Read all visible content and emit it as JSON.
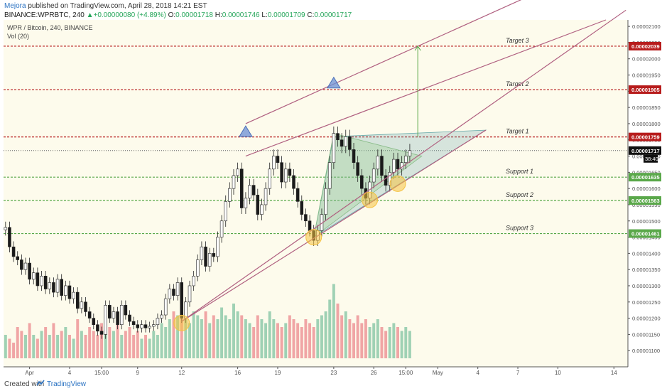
{
  "header": {
    "author": "Mejora",
    "published": "published on TradingView.com, April 28, 2018 14:21 EST",
    "symbol_line": "BINANCE:WPRBTC, 240",
    "change": "+0.00000080 (+4.89%)",
    "open_label": "O:",
    "open": "0.00001718",
    "high_label": "H:",
    "high": "0.00001746",
    "low_label": "L:",
    "low": "0.00001709",
    "close_label": "C:",
    "close": "0.00001717"
  },
  "legend": {
    "title": "WPR / Bitcoin, 240, BINANCE",
    "indicator": "Vol (20)"
  },
  "footer": {
    "created": "Created with",
    "brand": "TradingView",
    "icon": "tradingview-logo-icon"
  },
  "colors": {
    "background": "#fdfbec",
    "up": "#3a3a3a",
    "down": "#1a1a1a",
    "vol_up": "#9fd1b4",
    "vol_down": "#f0a5a5",
    "target": "#b71c1c",
    "support": "#5aa84a",
    "channel": "#b06080",
    "triangle_marker": "#6b8fd6",
    "circle_marker": "#f5c242",
    "green_arrow": "#5aa84a",
    "price_label_dark": "#111111"
  },
  "chart_data": {
    "type": "candlestick",
    "y_axis": {
      "min": 1.05e-05,
      "max": 2.12e-05,
      "ticks": [
        "0.00002100",
        "0.00002050",
        "0.00002000",
        "0.00001950",
        "0.00001900",
        "0.00001850",
        "0.00001800",
        "0.00001750",
        "0.00001700",
        "0.00001650",
        "0.00001600",
        "0.00001550",
        "0.00001500",
        "0.00001450",
        "0.00001400",
        "0.00001350",
        "0.00001300",
        "0.00001250",
        "0.00001200",
        "0.00001150",
        "0.00001100"
      ]
    },
    "x_axis": {
      "bars_visible": 156,
      "ticks": [
        {
          "label": "Apr",
          "bar": 6
        },
        {
          "label": "4",
          "bar": 16
        },
        {
          "label": "15:00",
          "bar": 24
        },
        {
          "label": "9",
          "bar": 33
        },
        {
          "label": "12",
          "bar": 44
        },
        {
          "label": "16",
          "bar": 58
        },
        {
          "label": "19",
          "bar": 68
        },
        {
          "label": "23",
          "bar": 82
        },
        {
          "label": "26",
          "bar": 92
        },
        {
          "label": "15:00",
          "bar": 100
        },
        {
          "label": "May",
          "bar": 108
        },
        {
          "label": "4",
          "bar": 118
        },
        {
          "label": "7",
          "bar": 128
        },
        {
          "label": "10",
          "bar": 138
        },
        {
          "label": "14",
          "bar": 152
        }
      ]
    },
    "horizontal_levels": [
      {
        "label": "Target 3",
        "value": 2.039e-05,
        "price_label": "0.00002039",
        "kind": "target"
      },
      {
        "label": "Target 2",
        "value": 1.905e-05,
        "price_label": "0.00001905",
        "kind": "target"
      },
      {
        "label": "Target 1",
        "value": 1.759e-05,
        "price_label": "0.00001759",
        "kind": "target"
      },
      {
        "label": "Support 1",
        "value": 1.635e-05,
        "price_label": "0.00001635",
        "kind": "support"
      },
      {
        "label": "Support 2",
        "value": 1.563e-05,
        "price_label": "0.00001563",
        "kind": "support"
      },
      {
        "label": "Support 3",
        "value": 1.461e-05,
        "price_label": "0.00001461",
        "kind": "support"
      }
    ],
    "current_price": {
      "value": 1.717e-05,
      "label": "0.00001717",
      "countdown": "38:40"
    },
    "close_series": [
      1.48e-05,
      1.42e-05,
      1.39e-05,
      1.38e-05,
      1.35e-05,
      1.37e-05,
      1.32e-05,
      1.34e-05,
      1.3e-05,
      1.33e-05,
      1.29e-05,
      1.31e-05,
      1.28e-05,
      1.32e-05,
      1.27e-05,
      1.3e-05,
      1.26e-05,
      1.28e-05,
      1.23e-05,
      1.25e-05,
      1.22e-05,
      1.2e-05,
      1.18e-05,
      1.16e-05,
      1.15e-05,
      1.24e-05,
      1.2e-05,
      1.22e-05,
      1.18e-05,
      1.24e-05,
      1.21e-05,
      1.19e-05,
      1.18e-05,
      1.17e-05,
      1.18e-05,
      1.17e-05,
      1.175e-05,
      1.18e-05,
      1.2e-05,
      1.21e-05,
      1.26e-05,
      1.29e-05,
      1.27e-05,
      1.31e-05,
      1.2e-05,
      1.25e-05,
      1.3e-05,
      1.33e-05,
      1.38e-05,
      1.42e-05,
      1.36e-05,
      1.4e-05,
      1.39e-05,
      1.45e-05,
      1.5e-05,
      1.56e-05,
      1.6e-05,
      1.64e-05,
      1.66e-05,
      1.54e-05,
      1.57e-05,
      1.61e-05,
      1.58e-05,
      1.52e-05,
      1.55e-05,
      1.6e-05,
      1.66e-05,
      1.7e-05,
      1.68e-05,
      1.62e-05,
      1.66e-05,
      1.64e-05,
      1.6e-05,
      1.56e-05,
      1.52e-05,
      1.5e-05,
      1.47e-05,
      1.44e-05,
      1.47e-05,
      1.52e-05,
      1.6e-05,
      1.68e-05,
      1.77e-05,
      1.75e-05,
      1.73e-05,
      1.76e-05,
      1.72e-05,
      1.68e-05,
      1.64e-05,
      1.6e-05,
      1.57e-05,
      1.62e-05,
      1.66e-05,
      1.7e-05,
      1.64e-05,
      1.61e-05,
      1.65e-05,
      1.69e-05,
      1.66e-05,
      1.68e-05,
      1.7e-05,
      1.717e-05
    ],
    "volume_series": [
      0.3,
      0.25,
      0.2,
      0.4,
      0.35,
      0.3,
      0.45,
      0.3,
      0.25,
      0.35,
      0.4,
      0.3,
      0.45,
      0.3,
      0.35,
      0.4,
      0.3,
      0.25,
      0.5,
      0.35,
      0.3,
      0.4,
      0.35,
      0.3,
      0.45,
      0.55,
      0.4,
      0.35,
      0.5,
      0.3,
      0.35,
      0.4,
      0.3,
      0.35,
      0.25,
      0.3,
      0.25,
      0.35,
      0.3,
      0.45,
      0.4,
      0.5,
      0.6,
      0.55,
      0.7,
      0.5,
      0.45,
      0.6,
      0.55,
      0.5,
      0.6,
      0.45,
      0.55,
      0.5,
      0.65,
      0.55,
      0.5,
      0.7,
      0.6,
      0.55,
      0.5,
      0.45,
      0.4,
      0.55,
      0.5,
      0.45,
      0.6,
      0.5,
      0.45,
      0.4,
      0.45,
      0.55,
      0.5,
      0.45,
      0.4,
      0.5,
      0.45,
      0.4,
      0.5,
      0.55,
      0.6,
      0.75,
      0.95,
      0.7,
      0.55,
      0.6,
      0.5,
      0.45,
      0.55,
      0.45,
      0.5,
      0.4,
      0.45,
      0.5,
      0.4,
      0.35,
      0.4,
      0.45,
      0.4,
      0.35,
      0.4,
      0.35
    ],
    "annotations": {
      "channel_lower": [
        {
          "bar": 44,
          "value": 1.19e-05
        },
        {
          "bar": 120,
          "value": 1.78e-05
        }
      ],
      "channel_upper_1": [
        {
          "bar": 60,
          "value": 1.7e-05
        },
        {
          "bar": 150,
          "value": 2.12e-05
        }
      ],
      "channel_upper_2": [
        {
          "bar": 60,
          "value": 1.8e-05
        },
        {
          "bar": 150,
          "value": 2.3e-05
        }
      ],
      "channel_lower_ext": [
        {
          "bar": 44,
          "value": 1.19e-05
        },
        {
          "bar": 155,
          "value": 2.15e-05
        }
      ],
      "triangle_markers": [
        {
          "bar": 60,
          "value": 1.76e-05
        },
        {
          "bar": 82,
          "value": 1.91e-05
        }
      ],
      "circle_markers": [
        {
          "bar": 44,
          "value": 1.185e-05
        },
        {
          "bar": 77,
          "value": 1.45e-05
        },
        {
          "bar": 91,
          "value": 1.565e-05
        },
        {
          "bar": 98,
          "value": 1.615e-05
        }
      ],
      "target_arrow": {
        "bar": 103,
        "from": 1.76e-05,
        "to": 2.039e-05
      }
    }
  }
}
